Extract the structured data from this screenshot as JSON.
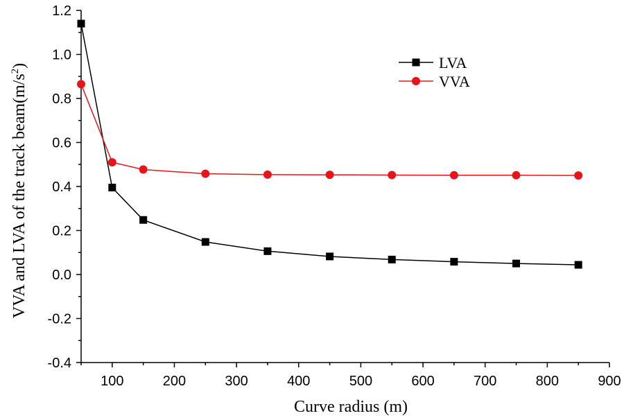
{
  "chart_data": {
    "type": "line",
    "title": "",
    "xlabel": "Curve radius (m)",
    "ylabel_main": "VVA and LVA of the track beam(m/s",
    "ylabel_sup": "2",
    "ylabel_end": ")",
    "xlim": [
      50,
      900
    ],
    "ylim": [
      -0.4,
      1.2
    ],
    "x_ticks": [
      100,
      200,
      300,
      400,
      500,
      600,
      700,
      800,
      900
    ],
    "y_ticks": [
      -0.4,
      -0.2,
      0.0,
      0.2,
      0.4,
      0.6,
      0.8,
      1.0,
      1.2
    ],
    "y_tick_labels": [
      "-0.4",
      "-0.2",
      "0.0",
      "0.2",
      "0.4",
      "0.6",
      "0.8",
      "1.0",
      "1.2"
    ],
    "x": [
      50,
      100,
      150,
      250,
      350,
      450,
      550,
      650,
      750,
      850
    ],
    "series": [
      {
        "name": "LVA",
        "color": "#000000",
        "marker": "square",
        "values": [
          1.14,
          0.395,
          0.248,
          0.148,
          0.106,
          0.082,
          0.068,
          0.058,
          0.05,
          0.044
        ]
      },
      {
        "name": "VVA",
        "color": "#e8141c",
        "marker": "circle",
        "values": [
          0.865,
          0.51,
          0.477,
          0.458,
          0.454,
          0.453,
          0.452,
          0.451,
          0.451,
          0.45
        ]
      }
    ],
    "legend_position": "top-right"
  }
}
